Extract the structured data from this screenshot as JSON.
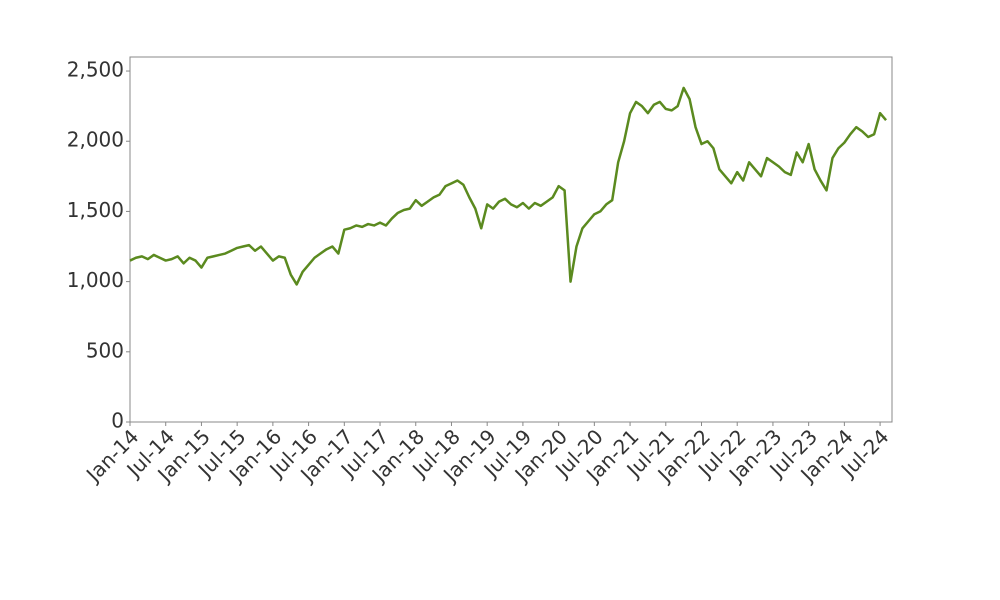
{
  "chart_data": {
    "type": "line",
    "color": "#5b8a1f",
    "x": [
      "2014-01",
      "2014-02",
      "2014-03",
      "2014-04",
      "2014-05",
      "2014-06",
      "2014-07",
      "2014-08",
      "2014-09",
      "2014-10",
      "2014-11",
      "2014-12",
      "2015-01",
      "2015-02",
      "2015-03",
      "2015-04",
      "2015-05",
      "2015-06",
      "2015-07",
      "2015-08",
      "2015-09",
      "2015-10",
      "2015-11",
      "2015-12",
      "2016-01",
      "2016-02",
      "2016-03",
      "2016-04",
      "2016-05",
      "2016-06",
      "2016-07",
      "2016-08",
      "2016-09",
      "2016-10",
      "2016-11",
      "2016-12",
      "2017-01",
      "2017-02",
      "2017-03",
      "2017-04",
      "2017-05",
      "2017-06",
      "2017-07",
      "2017-08",
      "2017-09",
      "2017-10",
      "2017-11",
      "2017-12",
      "2018-01",
      "2018-02",
      "2018-03",
      "2018-04",
      "2018-05",
      "2018-06",
      "2018-07",
      "2018-08",
      "2018-09",
      "2018-10",
      "2018-11",
      "2018-12",
      "2019-01",
      "2019-02",
      "2019-03",
      "2019-04",
      "2019-05",
      "2019-06",
      "2019-07",
      "2019-08",
      "2019-09",
      "2019-10",
      "2019-11",
      "2019-12",
      "2020-01",
      "2020-02",
      "2020-03",
      "2020-04",
      "2020-05",
      "2020-06",
      "2020-07",
      "2020-08",
      "2020-09",
      "2020-10",
      "2020-11",
      "2020-12",
      "2021-01",
      "2021-02",
      "2021-03",
      "2021-04",
      "2021-05",
      "2021-06",
      "2021-07",
      "2021-08",
      "2021-09",
      "2021-10",
      "2021-11",
      "2021-12",
      "2022-01",
      "2022-02",
      "2022-03",
      "2022-04",
      "2022-05",
      "2022-06",
      "2022-07",
      "2022-08",
      "2022-09",
      "2022-10",
      "2022-11",
      "2022-12",
      "2023-01",
      "2023-02",
      "2023-03",
      "2023-04",
      "2023-05",
      "2023-06",
      "2023-07",
      "2023-08",
      "2023-09",
      "2023-10",
      "2023-11",
      "2023-12",
      "2024-01",
      "2024-02",
      "2024-03",
      "2024-04",
      "2024-05",
      "2024-06",
      "2024-07",
      "2024-08"
    ],
    "values": [
      1150,
      1170,
      1180,
      1160,
      1190,
      1170,
      1150,
      1160,
      1180,
      1130,
      1170,
      1150,
      1100,
      1170,
      1180,
      1190,
      1200,
      1220,
      1240,
      1250,
      1260,
      1220,
      1250,
      1200,
      1150,
      1180,
      1170,
      1050,
      980,
      1070,
      1120,
      1170,
      1200,
      1230,
      1250,
      1200,
      1370,
      1380,
      1400,
      1390,
      1410,
      1400,
      1420,
      1400,
      1450,
      1490,
      1510,
      1520,
      1580,
      1540,
      1570,
      1600,
      1620,
      1680,
      1700,
      1720,
      1690,
      1600,
      1520,
      1380,
      1550,
      1520,
      1570,
      1590,
      1550,
      1530,
      1560,
      1520,
      1560,
      1540,
      1570,
      1600,
      1680,
      1650,
      1000,
      1250,
      1380,
      1430,
      1480,
      1500,
      1550,
      1580,
      1850,
      2000,
      2200,
      2280,
      2250,
      2200,
      2260,
      2280,
      2230,
      2220,
      2250,
      2380,
      2300,
      2100,
      1980,
      2000,
      1950,
      1800,
      1750,
      1700,
      1780,
      1720,
      1850,
      1800,
      1750,
      1880,
      1850,
      1820,
      1780,
      1760,
      1920,
      1850,
      1980,
      1800,
      1720,
      1650,
      1880,
      1950,
      1990,
      2050,
      2100,
      2070,
      2030,
      2050,
      2200,
      2150
    ],
    "xlim": [
      "2014-01",
      "2024-09"
    ],
    "xticks": [
      {
        "value": "2014-01",
        "label": "Jan-14"
      },
      {
        "value": "2014-07",
        "label": "Jul-14"
      },
      {
        "value": "2015-01",
        "label": "Jan-15"
      },
      {
        "value": "2015-07",
        "label": "Jul-15"
      },
      {
        "value": "2016-01",
        "label": "Jan-16"
      },
      {
        "value": "2016-07",
        "label": "Jul-16"
      },
      {
        "value": "2017-01",
        "label": "Jan-17"
      },
      {
        "value": "2017-07",
        "label": "Jul-17"
      },
      {
        "value": "2018-01",
        "label": "Jan-18"
      },
      {
        "value": "2018-07",
        "label": "Jul-18"
      },
      {
        "value": "2019-01",
        "label": "Jan-19"
      },
      {
        "value": "2019-07",
        "label": "Jul-19"
      },
      {
        "value": "2020-01",
        "label": "Jan-20"
      },
      {
        "value": "2020-07",
        "label": "Jul-20"
      },
      {
        "value": "2021-01",
        "label": "Jan-21"
      },
      {
        "value": "2021-07",
        "label": "Jul-21"
      },
      {
        "value": "2022-01",
        "label": "Jan-22"
      },
      {
        "value": "2022-07",
        "label": "Jul-22"
      },
      {
        "value": "2023-01",
        "label": "Jan-23"
      },
      {
        "value": "2023-07",
        "label": "Jul-23"
      },
      {
        "value": "2024-01",
        "label": "Jan-24"
      },
      {
        "value": "2024-07",
        "label": "Jul-24"
      }
    ],
    "ylim": [
      0,
      2600
    ],
    "yticks": [
      0,
      500,
      {
        "value": 1000,
        "label": "1,000"
      },
      {
        "value": 1500,
        "label": "1,500"
      },
      {
        "value": 2000,
        "label": "2,000"
      },
      {
        "value": 2500,
        "label": "2,500"
      }
    ]
  }
}
